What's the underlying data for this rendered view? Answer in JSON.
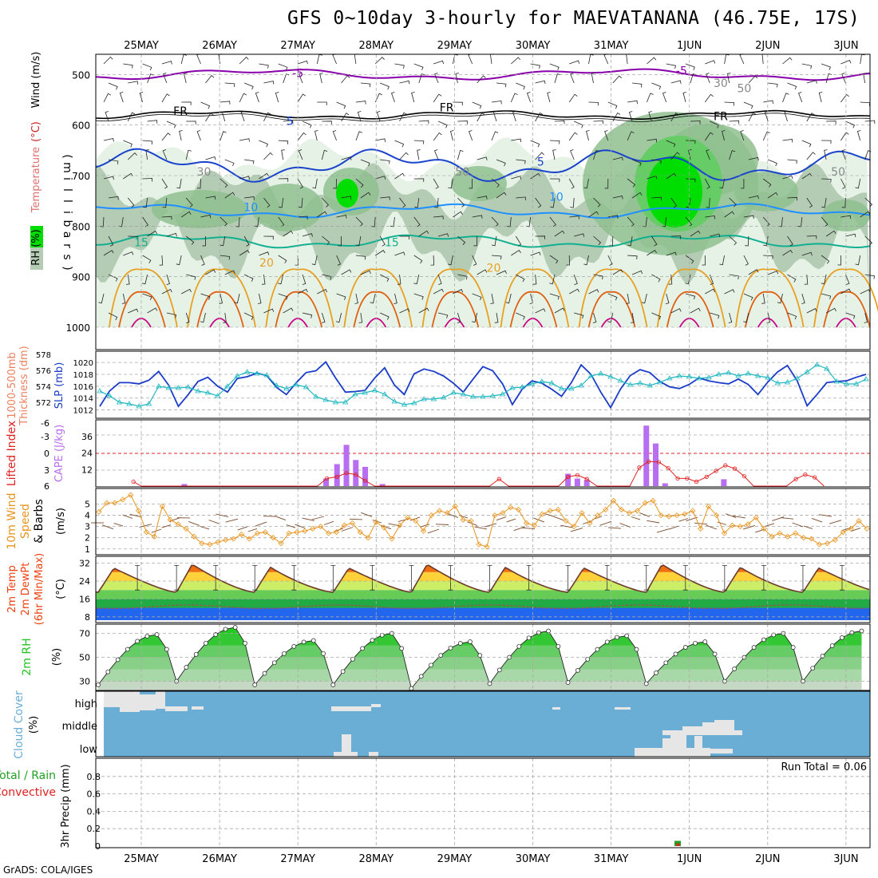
{
  "title": "GFS 0~10day 3-hourly for MAEVATANANA (46.75E, 17S)",
  "credit": "GrADS: COLA/IGES",
  "colors": {
    "rh_light": "#e6f2e6",
    "rh_mid": "#b4ccb4",
    "rh_dark": "#8fbf8f",
    "rh_green": "#66cc66",
    "rh_bright": "#00dd00",
    "temp_purple": "#8800aa",
    "temp_blue": "#1a44cc",
    "temp_lightblue": "#1e90ff",
    "temp_teal": "#10b090",
    "temp_orange": "#e8a020",
    "temp_darkorange": "#e06010",
    "temp_magenta": "#cc0088",
    "slp": "#1a3cc8",
    "thickness": "#20b8c0",
    "lifted": "#e02020",
    "cape": "#b86ef0",
    "wind": "#e8941c",
    "barb": "#7a4a2a",
    "rh2m": "#22c422",
    "cloud_bg": "#6aaed6",
    "cloud_fill": "#e6e6e6",
    "precip_conv": "#e02020",
    "precip_total": "#22a022"
  },
  "chart_data": [
    {
      "panel": "upper-air",
      "type": "heatmap",
      "dates": [
        "25MAY",
        "26MAY",
        "27MAY",
        "28MAY",
        "29MAY",
        "30MAY",
        "31MAY",
        "1JUN",
        "2JUN",
        "3JUN"
      ],
      "ylabel": "(millibars)",
      "ylabel_chars": [
        "(",
        "m",
        "i",
        "l",
        "l",
        "i",
        "b",
        "a",
        "r",
        "s",
        ")"
      ],
      "side_labels": [
        "RH (%)",
        "Temperature",
        "(°C)",
        "Wind (m/s)"
      ],
      "y_ticks": [
        500,
        600,
        700,
        800,
        900,
        1000
      ],
      "ylim": [
        460,
        1000
      ],
      "contour_labels": [
        {
          "text": "-5",
          "t": 2.0,
          "p": 505,
          "color": "temp_purple"
        },
        {
          "text": "-5",
          "t": 6.9,
          "p": 500,
          "color": "temp_purple"
        },
        {
          "text": "FR",
          "t": 0.5,
          "p": 580,
          "color": "#000"
        },
        {
          "text": "FR",
          "t": 3.9,
          "p": 573,
          "color": "#000"
        },
        {
          "text": "FR",
          "t": 7.4,
          "p": 590,
          "color": "#000"
        },
        {
          "text": "5",
          "t": 1.9,
          "p": 600,
          "color": "temp_blue"
        },
        {
          "text": "5",
          "t": 5.1,
          "p": 680,
          "color": "temp_blue"
        },
        {
          "text": "10",
          "t": 1.4,
          "p": 770,
          "color": "temp_lightblue"
        },
        {
          "text": "10",
          "t": 5.3,
          "p": 750,
          "color": "temp_lightblue"
        },
        {
          "text": "15",
          "t": 0.0,
          "p": 840,
          "color": "temp_teal"
        },
        {
          "text": "15",
          "t": 3.2,
          "p": 840,
          "color": "temp_teal"
        },
        {
          "text": "20",
          "t": 1.6,
          "p": 880,
          "color": "temp_orange"
        },
        {
          "text": "20",
          "t": 4.5,
          "p": 890,
          "color": "temp_orange"
        },
        {
          "text": "30",
          "t": 0.8,
          "p": 700,
          "color": "#888"
        },
        {
          "text": "30",
          "t": 7.4,
          "p": 525,
          "color": "#888"
        },
        {
          "text": "50",
          "t": 7.7,
          "p": 535,
          "color": "#888"
        },
        {
          "text": "50",
          "t": 8.9,
          "p": 700,
          "color": "#888"
        },
        {
          "text": "50",
          "t": 4.1,
          "p": 700,
          "color": "#888"
        }
      ]
    },
    {
      "panel": "slp-thickness",
      "type": "line",
      "left_label": "SLP (mb)",
      "right_label_lines": [
        "1000-500mb",
        "Thickness (dm)"
      ],
      "y_ticks_left": [
        1012,
        1014,
        1016,
        1018,
        1020
      ],
      "y_ticks_thick": [
        572,
        574,
        576,
        578
      ],
      "ylim_slp": [
        1011,
        1021.5
      ],
      "ylim_thick": [
        570.3,
        578.1
      ],
      "series": [
        {
          "name": "SLP",
          "values": [
            1012.6,
            1015.2,
            1016.6,
            1016.6,
            1016.4,
            1017.0,
            1018.5,
            1016.2,
            1012.6,
            1014.6,
            1016.8,
            1017.5,
            1016.0,
            1015.0,
            1017.3,
            1017.6,
            1018.2,
            1017.8,
            1015.8,
            1014.6,
            1016.6,
            1018.3,
            1018.6,
            1020.1,
            1017.4,
            1015.0,
            1015.1,
            1015.3,
            1017.4,
            1019.1,
            1016.2,
            1014.6,
            1018.1,
            1018.9,
            1018.5,
            1017.7,
            1016.5,
            1015.0,
            1017.2,
            1019.3,
            1018.6,
            1016.4,
            1012.9,
            1015.5,
            1016.9,
            1016.5,
            1015.5,
            1014.3,
            1016.6,
            1019.6,
            1018.0,
            1015.0,
            1012.4,
            1015.5,
            1017.8,
            1018.8,
            1018.3,
            1016.8,
            1015.9,
            1015.6,
            1016.3,
            1017.4,
            1016.9,
            1016.6,
            1016.4,
            1017.2,
            1016.3,
            1014.6,
            1016.7,
            1018.4,
            1019.5,
            1016.9,
            1012.7,
            1014.6,
            1016.6,
            1016.8,
            1016.9,
            1017.5,
            1018.0
          ]
        },
        {
          "name": "Thickness",
          "values": [
            573.4,
            572.8,
            572.0,
            571.8,
            571.5,
            571.8,
            574.0,
            573.8,
            573.8,
            573.9,
            573.4,
            573.2,
            572.8,
            574.0,
            575.3,
            575.8,
            575.6,
            575.4,
            574.1,
            573.7,
            574.2,
            573.9,
            572.7,
            572.3,
            572.0,
            572.0,
            573.0,
            573.2,
            573.5,
            573.0,
            572.1,
            571.7,
            571.9,
            572.4,
            572.4,
            572.6,
            573.2,
            573.0,
            572.7,
            572.7,
            572.8,
            573.0,
            573.8,
            573.9,
            574.3,
            574.6,
            574.4,
            573.7,
            573.7,
            574.1,
            575.3,
            575.6,
            575.2,
            574.7,
            574.2,
            574.4,
            574.1,
            574.5,
            575.0,
            575.3,
            575.2,
            575.0,
            575.1,
            575.5,
            575.7,
            575.3,
            575.6,
            575.3,
            575.1,
            574.4,
            574.5,
            575.0,
            575.8,
            576.7,
            576.2,
            574.6,
            574.3,
            574.3,
            574.9
          ]
        }
      ]
    },
    {
      "panel": "stability",
      "type": "bar",
      "left_label": "Lifted Index",
      "right_label": "CAPE (J/kg)",
      "li_ticks": [
        "-6",
        "-3",
        "0",
        "3",
        "6"
      ],
      "cape_ticks": [
        12,
        24,
        36
      ],
      "cape_bars": [
        {
          "t": 0.55,
          "v": 1.5
        },
        {
          "t": 2.36,
          "v": 5.5
        },
        {
          "t": 2.5,
          "v": 16
        },
        {
          "t": 2.62,
          "v": 30
        },
        {
          "t": 2.74,
          "v": 19
        },
        {
          "t": 2.86,
          "v": 14
        },
        {
          "t": 3.08,
          "v": 1.5
        },
        {
          "t": 5.45,
          "v": 9
        },
        {
          "t": 5.57,
          "v": 5.5
        },
        {
          "t": 5.69,
          "v": 4.5
        },
        {
          "t": 6.45,
          "v": 44
        },
        {
          "t": 6.57,
          "v": 31
        },
        {
          "t": 6.69,
          "v": 2
        },
        {
          "t": 7.44,
          "v": 5
        }
      ],
      "lifted_index": [
        {
          "t": -0.1,
          "v": 5.2
        },
        {
          "t": 0.0,
          "v": 6.0
        },
        {
          "t": 2.25,
          "v": 6.0
        },
        {
          "t": 2.37,
          "v": 4.6
        },
        {
          "t": 2.5,
          "v": 4.3
        },
        {
          "t": 2.62,
          "v": 3.6
        },
        {
          "t": 2.74,
          "v": 3.9
        },
        {
          "t": 2.86,
          "v": 5.0
        },
        {
          "t": 2.98,
          "v": 6.0
        },
        {
          "t": 4.45,
          "v": 6.0
        },
        {
          "t": 4.57,
          "v": 4.7
        },
        {
          "t": 4.69,
          "v": 6.0
        },
        {
          "t": 5.33,
          "v": 6.0
        },
        {
          "t": 5.45,
          "v": 4.3
        },
        {
          "t": 5.57,
          "v": 4.0
        },
        {
          "t": 5.69,
          "v": 4.7
        },
        {
          "t": 5.82,
          "v": 6.0
        },
        {
          "t": 6.24,
          "v": 6.0
        },
        {
          "t": 6.36,
          "v": 2.6
        },
        {
          "t": 6.48,
          "v": 1.5
        },
        {
          "t": 6.61,
          "v": 1.6
        },
        {
          "t": 6.73,
          "v": 2.7
        },
        {
          "t": 6.85,
          "v": 4.6
        },
        {
          "t": 6.97,
          "v": 4.6
        },
        {
          "t": 7.09,
          "v": 5.2
        },
        {
          "t": 7.22,
          "v": 4.3
        },
        {
          "t": 7.34,
          "v": 3.2
        },
        {
          "t": 7.46,
          "v": 2.2
        },
        {
          "t": 7.58,
          "v": 2.8
        },
        {
          "t": 7.7,
          "v": 4.2
        },
        {
          "t": 7.82,
          "v": 6.0
        },
        {
          "t": 8.24,
          "v": 6.0
        },
        {
          "t": 8.36,
          "v": 4.7
        },
        {
          "t": 8.48,
          "v": 3.9
        },
        {
          "t": 8.6,
          "v": 4.4
        },
        {
          "t": 8.72,
          "v": 6.0
        }
      ]
    },
    {
      "panel": "wind10m",
      "type": "line",
      "left_label_lines": [
        "10m Wind",
        "Speed",
        "& Barbs"
      ],
      "unit": "(m/s)",
      "y_ticks": [
        1,
        2,
        3,
        4,
        5
      ],
      "ylim": [
        0.7,
        6.1
      ],
      "series": [
        {
          "name": "speed",
          "values": [
            4.3,
            5.1,
            5.1,
            5.4,
            5.8,
            4.4,
            2.5,
            2.1,
            4.8,
            3.6,
            3.2,
            2.8,
            2.1,
            1.5,
            1.4,
            1.6,
            1.8,
            1.9,
            2.3,
            1.9,
            2.4,
            2.5,
            2.0,
            1.5,
            2.4,
            2.5,
            2.6,
            2.8,
            3.0,
            2.4,
            2.5,
            3.1,
            3.3,
            2.5,
            2.0,
            3.4,
            2.9,
            1.9,
            3.1,
            3.8,
            3.5,
            2.6,
            4.0,
            4.4,
            4.2,
            4.8,
            3.6,
            3.5,
            1.4,
            1.2,
            4.0,
            4.2,
            4.7,
            4.5,
            3.3,
            3.1,
            4.1,
            4.4,
            4.5,
            3.5,
            3.0,
            4.2,
            3.3,
            4.0,
            4.5,
            5.3,
            4.5,
            4.2,
            4.4,
            5.1,
            5.3,
            4.0,
            3.9,
            4.0,
            4.1,
            4.4,
            2.8,
            4.8,
            4.0,
            2.4,
            3.1,
            3.0,
            3.2,
            3.8,
            2.8,
            2.1,
            2.4,
            2.1,
            2.4,
            2.0,
            1.9,
            1.4,
            1.5,
            1.8,
            2.5,
            2.8,
            3.5,
            2.8
          ]
        }
      ]
    },
    {
      "panel": "temperature2m",
      "type": "area",
      "left_label_lines": [
        "2m Temp",
        "2m DewPt",
        "(6hr Min/Max)"
      ],
      "unit": "(°C)",
      "y_ticks": [
        8,
        16,
        24,
        32
      ],
      "ylim": [
        6.5,
        34
      ],
      "diurnal": {
        "tmin": 19.0,
        "tmax": 31.5,
        "dewpoint": 12.5
      }
    },
    {
      "panel": "rh2m",
      "type": "area",
      "left_label": "2m RH",
      "unit": "(%)",
      "y_ticks": [
        30,
        50,
        70
      ],
      "ylim": [
        23,
        75
      ],
      "daily_max": [
        69,
        75,
        64,
        70,
        63,
        72,
        68,
        63,
        70,
        72
      ],
      "daily_min": [
        27,
        30,
        27,
        27,
        24,
        28,
        29,
        28,
        30,
        30
      ]
    },
    {
      "panel": "cloud",
      "type": "area",
      "left_label": "Cloud Cover",
      "unit": "(%)",
      "levels": [
        "high",
        "middle",
        "low"
      ]
    },
    {
      "panel": "precip",
      "type": "bar",
      "left_label": "3hr Precip (mm)",
      "legend_total": "Total / Rain",
      "legend_conv": "Convective",
      "run_total": "Run Total = 0.06",
      "y_ticks": [
        "0",
        "0.2",
        "0.4",
        "0.6",
        "0.8"
      ],
      "ylim": [
        0,
        1
      ],
      "bars": [
        {
          "t": 6.85,
          "total": 0.06,
          "convective": 0.03
        }
      ]
    }
  ]
}
